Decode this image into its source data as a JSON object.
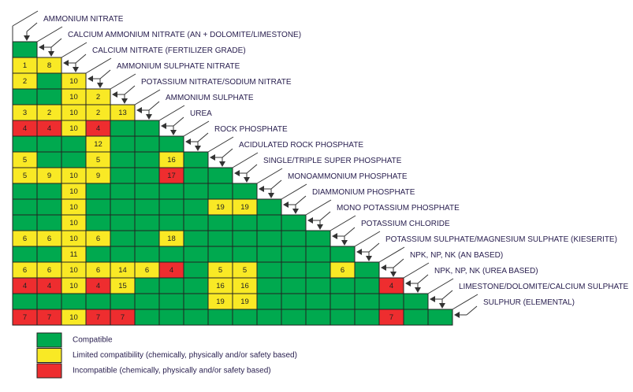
{
  "colors": {
    "G": "#00a94f",
    "Y": "#f9e925",
    "R": "#ee2d2f"
  },
  "products": [
    "AMMONIUM NITRATE",
    "CALCIUM AMMONIUM NITRATE  (AN + DOLOMITE/LIMESTONE)",
    "CALCIUM NITRATE (FERTILIZER GRADE)",
    "AMMONIUM SULPHATE NITRATE",
    "POTASSIUM NITRATE/SODIUM NITRATE",
    "AMMONIUM SULPHATE",
    "UREA",
    "ROCK PHOSPHATE",
    "ACIDULATED ROCK PHOSPHATE",
    "SINGLE/TRIPLE SUPER PHOSPHATE",
    "MONOAMMONIUM PHOSPHATE",
    "DIAMMONIUM PHOSPHATE",
    "MONO POTASSIUM PHOSPHATE",
    "POTASSIUM CHLORIDE",
    "POTASSIUM SULPHATE/MAGNESIUM SULPHATE (KIESERITE)",
    "NPK, NP, NK (AN BASED)",
    "NPK, NP, NK (UREA BASED)",
    "LIMESTONE/DOLOMITE/CALCIUM SULPHATE",
    "SULPHUR (ELEMENTAL)"
  ],
  "matrix": [
    [
      "G"
    ],
    [
      "Y1",
      "Y8"
    ],
    [
      "Y2",
      "G",
      "Y10"
    ],
    [
      "G",
      "G",
      "Y10",
      "Y2"
    ],
    [
      "Y3",
      "Y2",
      "Y10",
      "Y2",
      "Y13"
    ],
    [
      "R4",
      "R4",
      "Y10",
      "R4",
      "G",
      "G"
    ],
    [
      "G",
      "G",
      "G",
      "Y12",
      "G",
      "G",
      "G"
    ],
    [
      "Y5",
      "G",
      "G",
      "Y5",
      "G",
      "G",
      "Y16",
      "G"
    ],
    [
      "Y5",
      "Y9",
      "Y10",
      "Y9",
      "G",
      "G",
      "R17",
      "G",
      "G"
    ],
    [
      "G",
      "G",
      "Y10",
      "G",
      "G",
      "G",
      "G",
      "G",
      "G",
      "G"
    ],
    [
      "G",
      "G",
      "Y10",
      "G",
      "G",
      "G",
      "G",
      "G",
      "Y19",
      "Y19",
      "G"
    ],
    [
      "G",
      "G",
      "Y10",
      "G",
      "G",
      "G",
      "G",
      "G",
      "G",
      "G",
      "G",
      "G"
    ],
    [
      "Y6",
      "Y6",
      "Y10",
      "Y6",
      "G",
      "G",
      "Y18",
      "G",
      "G",
      "G",
      "G",
      "G",
      "G"
    ],
    [
      "G",
      "G",
      "Y11",
      "G",
      "G",
      "G",
      "G",
      "G",
      "G",
      "G",
      "G",
      "G",
      "G",
      "G"
    ],
    [
      "Y6",
      "Y6",
      "Y10",
      "Y6",
      "Y14",
      "Y6",
      "R4",
      "G",
      "Y5",
      "Y5",
      "G",
      "G",
      "G",
      "Y6",
      "G"
    ],
    [
      "R4",
      "R4",
      "Y10",
      "R4",
      "Y15",
      "G",
      "G",
      "G",
      "Y16",
      "Y16",
      "G",
      "G",
      "G",
      "G",
      "G",
      "R4"
    ],
    [
      "G",
      "G",
      "G",
      "G",
      "G",
      "G",
      "G",
      "G",
      "Y19",
      "Y19",
      "G",
      "G",
      "G",
      "G",
      "G",
      "G",
      "G"
    ],
    [
      "R7",
      "R7",
      "Y10",
      "R7",
      "R7",
      "G",
      "G",
      "G",
      "G",
      "G",
      "G",
      "G",
      "G",
      "G",
      "G",
      "R7",
      "G",
      "G"
    ]
  ],
  "legend": [
    {
      "color": "G",
      "label": "Compatible"
    },
    {
      "color": "Y",
      "label": "Limited compatibility (chemically, physically and/or safety based)"
    },
    {
      "color": "R",
      "label": "Incompatible (chemically, physically and/or safety based)"
    }
  ]
}
